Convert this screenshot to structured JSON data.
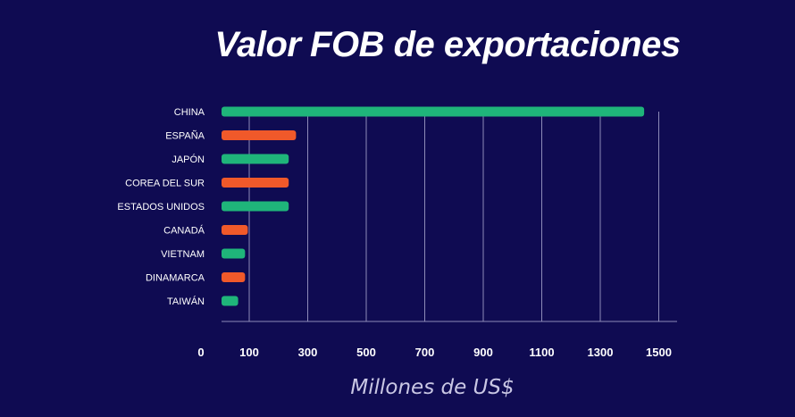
{
  "chart_data": {
    "type": "bar",
    "orientation": "horizontal",
    "title": "Valor FOB de exportaciones",
    "xlabel": "Millones de US$",
    "ylabel": "",
    "categories": [
      "CHINA",
      "ESPAÑA",
      "JAPÓN",
      "COREA DEL SUR",
      "ESTADOS UNIDOS",
      "CANADÁ",
      "VIETNAM",
      "DINAMARCA",
      "TAIWÁN"
    ],
    "values": [
      1450,
      260,
      235,
      235,
      235,
      95,
      85,
      85,
      60
    ],
    "bar_colors": [
      "#1fb57a",
      "#f0592a",
      "#1fb57a",
      "#f0592a",
      "#1fb57a",
      "#f0592a",
      "#1fb57a",
      "#f0592a",
      "#1fb57a"
    ],
    "xticks": [
      0,
      100,
      300,
      500,
      700,
      900,
      1100,
      1300,
      1500
    ],
    "xlim": [
      0,
      1500
    ],
    "grid": true,
    "legend": "none"
  },
  "colors": {
    "background": "#0f0b52",
    "bar_green": "#1fb57a",
    "bar_orange": "#f0592a",
    "grid": "#8d8bb8",
    "text": "#ffffff"
  }
}
